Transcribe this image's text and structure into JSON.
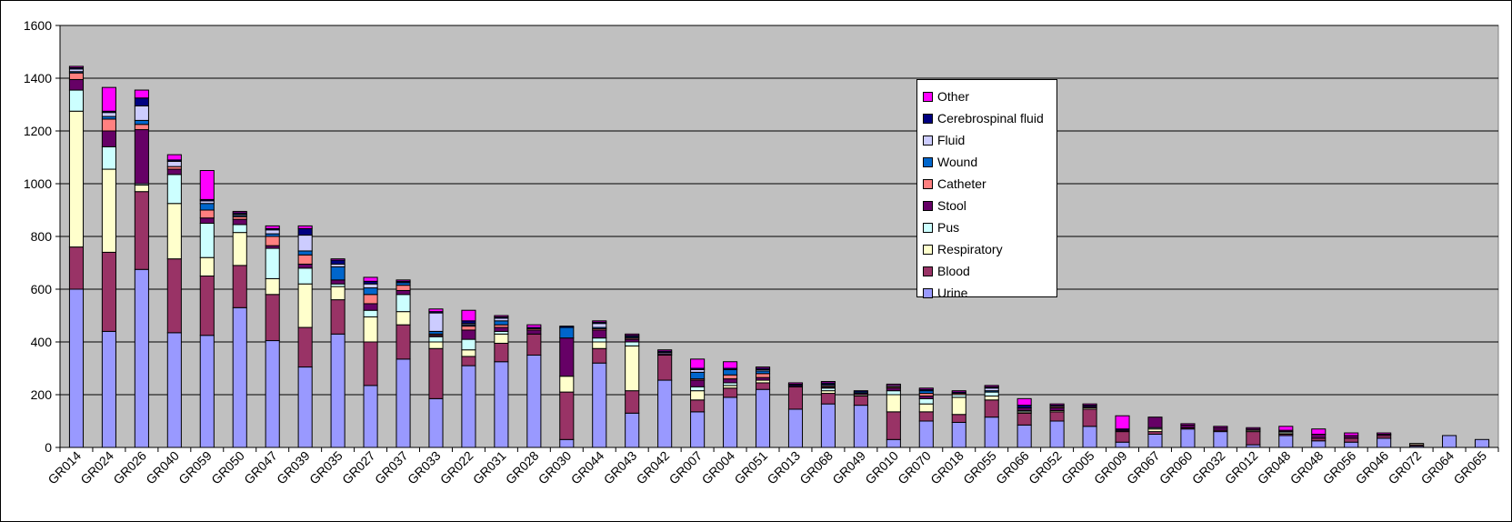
{
  "chart_data": {
    "type": "bar",
    "stacked": true,
    "ylim": [
      0,
      1600
    ],
    "yticks": [
      0,
      200,
      400,
      600,
      800,
      1000,
      1200,
      1400,
      1600
    ],
    "grid": true,
    "legend_position": "upper-right",
    "categories": [
      "GR014",
      "GR024",
      "GR026",
      "GR040",
      "GR059",
      "GR050",
      "GR047",
      "GR039",
      "GR035",
      "GR027",
      "GR037",
      "GR033",
      "GR022",
      "GR031",
      "GR028",
      "GR030",
      "GR044",
      "GR043",
      "GR042",
      "GR007",
      "GR004",
      "GR051",
      "GR013",
      "GR068",
      "GR049",
      "GR010",
      "GR070",
      "GR018",
      "GR055",
      "GR066",
      "GR052",
      "GR005",
      "GR009",
      "GR067",
      "GR060",
      "GR032",
      "GR012",
      "GR048",
      "GR048",
      "GR056",
      "GR046",
      "GR072",
      "GR064",
      "GR065"
    ],
    "series": [
      {
        "name": "Urine",
        "color": "#9999ff",
        "values": [
          600,
          440,
          675,
          435,
          425,
          530,
          405,
          305,
          430,
          235,
          335,
          185,
          310,
          325,
          350,
          30,
          320,
          130,
          255,
          135,
          190,
          220,
          145,
          165,
          160,
          30,
          100,
          95,
          115,
          85,
          100,
          80,
          20,
          50,
          70,
          60,
          10,
          45,
          25,
          20,
          35,
          5,
          45,
          30
        ]
      },
      {
        "name": "Blood",
        "color": "#993366",
        "values": [
          160,
          300,
          295,
          280,
          225,
          160,
          175,
          150,
          130,
          165,
          130,
          190,
          35,
          70,
          80,
          180,
          55,
          85,
          95,
          45,
          35,
          25,
          85,
          40,
          35,
          105,
          35,
          30,
          65,
          45,
          35,
          65,
          40,
          10,
          5,
          5,
          50,
          5,
          10,
          15,
          10,
          5,
          0,
          0
        ]
      },
      {
        "name": "Respiratory",
        "color": "#ffffcc",
        "values": [
          515,
          315,
          25,
          210,
          70,
          125,
          60,
          165,
          50,
          95,
          50,
          25,
          25,
          35,
          0,
          60,
          25,
          170,
          0,
          35,
          10,
          10,
          0,
          10,
          5,
          65,
          30,
          65,
          15,
          5,
          5,
          5,
          0,
          10,
          0,
          0,
          5,
          5,
          0,
          0,
          0,
          5,
          0,
          0
        ]
      },
      {
        "name": "Pus",
        "color": "#ccffff",
        "values": [
          80,
          85,
          5,
          110,
          130,
          30,
          115,
          60,
          10,
          25,
          65,
          20,
          40,
          10,
          0,
          0,
          15,
          15,
          0,
          15,
          10,
          0,
          0,
          10,
          0,
          15,
          20,
          10,
          15,
          5,
          0,
          0,
          0,
          5,
          0,
          0,
          0,
          5,
          0,
          0,
          0,
          0,
          0,
          0
        ]
      },
      {
        "name": "Stool",
        "color": "#660066",
        "values": [
          40,
          60,
          205,
          20,
          20,
          20,
          10,
          15,
          15,
          25,
          15,
          5,
          35,
          15,
          15,
          145,
          30,
          10,
          5,
          25,
          15,
          10,
          5,
          5,
          5,
          10,
          10,
          0,
          0,
          10,
          10,
          5,
          5,
          40,
          10,
          10,
          5,
          5,
          15,
          10,
          5,
          0,
          0,
          0
        ]
      },
      {
        "name": "Catheter",
        "color": "#ff8080",
        "values": [
          25,
          45,
          20,
          10,
          30,
          10,
          35,
          35,
          0,
          35,
          20,
          5,
          15,
          10,
          5,
          0,
          5,
          5,
          0,
          5,
          15,
          15,
          0,
          5,
          0,
          5,
          10,
          5,
          0,
          0,
          5,
          0,
          0,
          0,
          0,
          0,
          0,
          0,
          0,
          0,
          0,
          0,
          0,
          0
        ]
      },
      {
        "name": "Wound",
        "color": "#0066cc",
        "values": [
          5,
          10,
          15,
          0,
          25,
          5,
          10,
          15,
          50,
          25,
          10,
          10,
          5,
          15,
          0,
          40,
          5,
          5,
          0,
          25,
          20,
          10,
          0,
          5,
          5,
          0,
          10,
          0,
          5,
          0,
          0,
          0,
          0,
          0,
          0,
          0,
          0,
          0,
          0,
          0,
          0,
          0,
          0,
          0
        ]
      },
      {
        "name": "Fluid",
        "color": "#ccccff",
        "values": [
          10,
          15,
          55,
          20,
          10,
          5,
          15,
          60,
          10,
          15,
          0,
          70,
          5,
          10,
          0,
          0,
          15,
          0,
          5,
          10,
          0,
          5,
          0,
          0,
          0,
          5,
          0,
          0,
          10,
          0,
          0,
          0,
          0,
          0,
          0,
          0,
          0,
          0,
          0,
          0,
          0,
          0,
          0,
          0
        ]
      },
      {
        "name": "Cerebrospinal fluid",
        "color": "#000080",
        "values": [
          5,
          5,
          30,
          5,
          5,
          5,
          5,
          25,
          15,
          10,
          5,
          5,
          10,
          5,
          5,
          5,
          5,
          5,
          5,
          5,
          5,
          5,
          5,
          5,
          5,
          0,
          5,
          5,
          5,
          10,
          5,
          5,
          5,
          0,
          0,
          0,
          0,
          0,
          0,
          0,
          0,
          0,
          0,
          0
        ]
      },
      {
        "name": "Other",
        "color": "#ff00ff",
        "values": [
          5,
          90,
          30,
          20,
          110,
          5,
          10,
          10,
          5,
          15,
          5,
          10,
          40,
          5,
          10,
          0,
          5,
          5,
          5,
          35,
          25,
          5,
          5,
          5,
          0,
          5,
          5,
          5,
          5,
          25,
          5,
          5,
          50,
          0,
          5,
          5,
          5,
          15,
          20,
          10,
          5,
          0,
          0,
          0
        ]
      }
    ]
  }
}
